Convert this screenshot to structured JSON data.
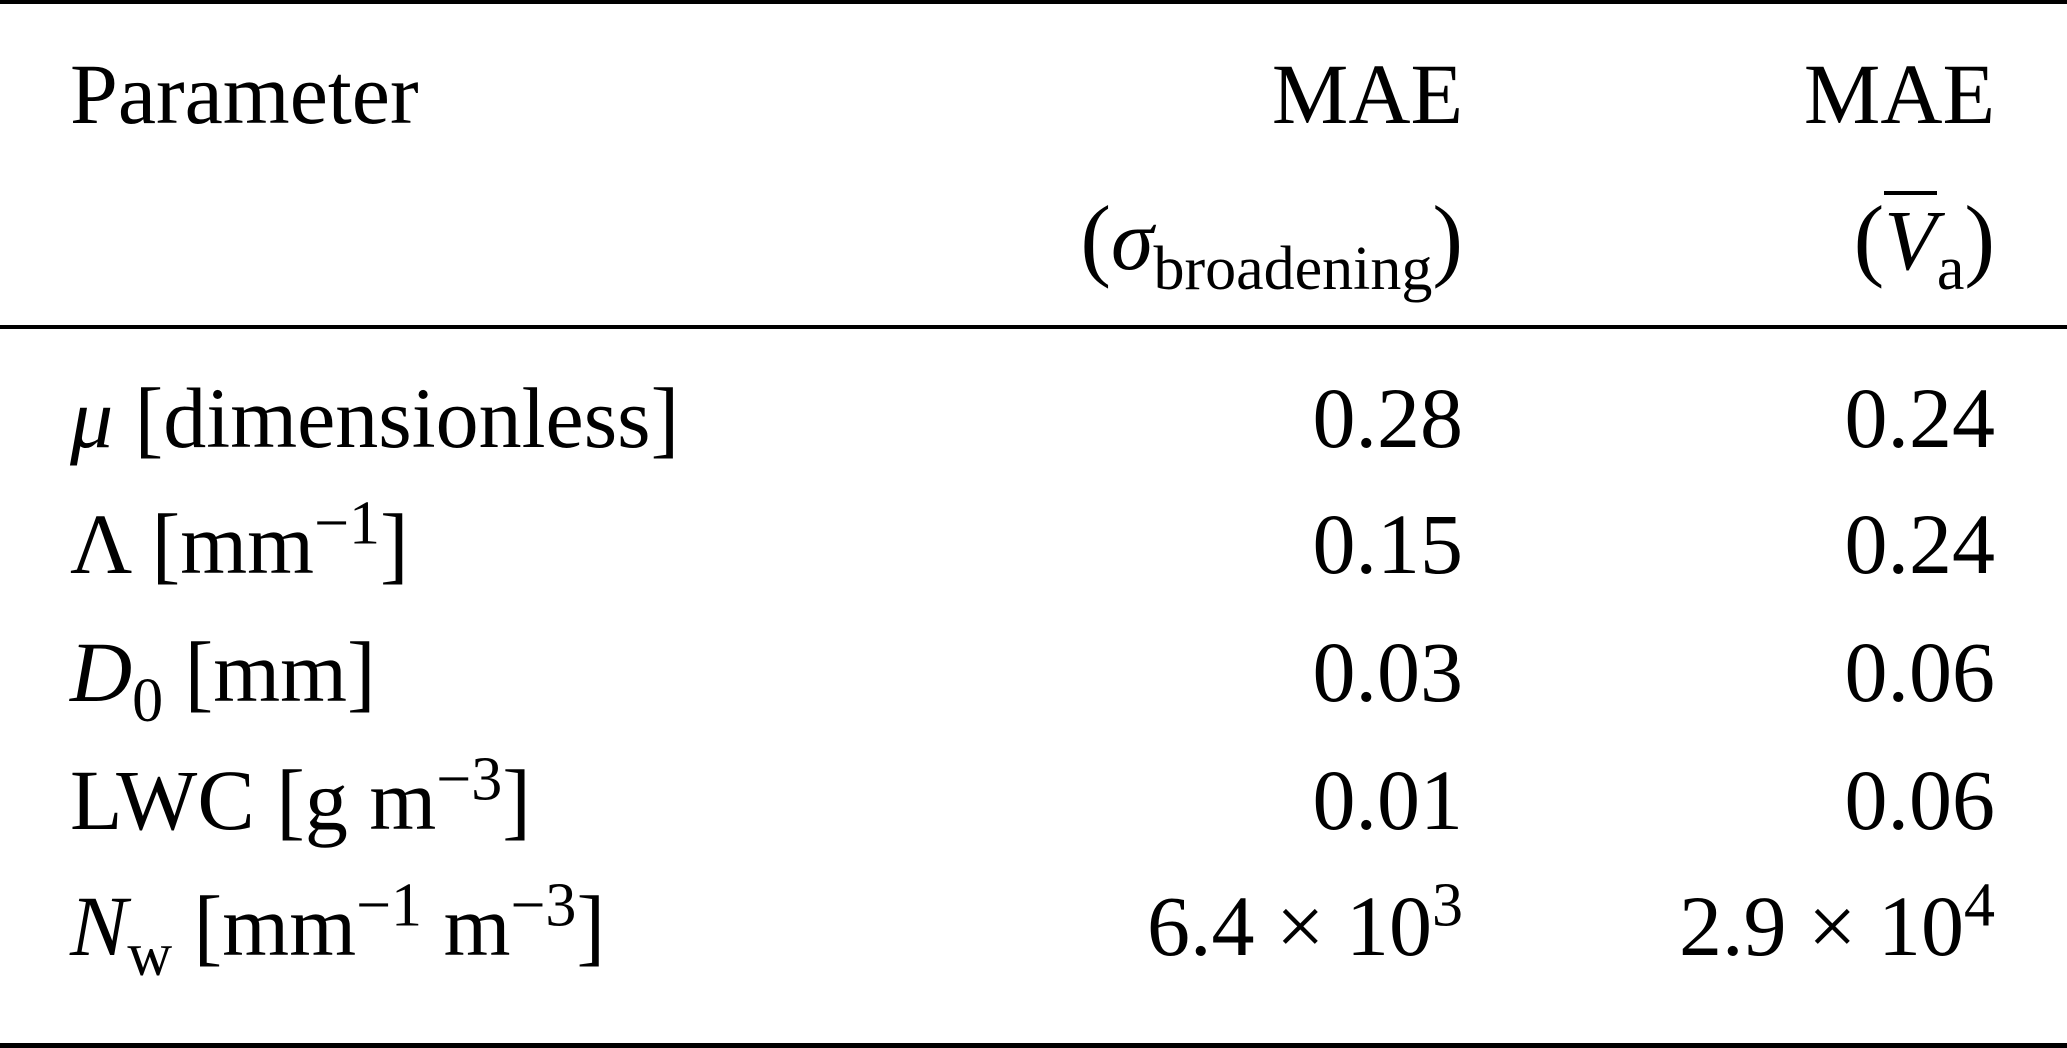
{
  "table": {
    "header": {
      "col0": "Parameter",
      "col1_line1": "MAE",
      "col1_line2": {
        "open": "(",
        "symbol": "σ",
        "subscript": "broadening",
        "close": ")"
      },
      "col2_line1": "MAE",
      "col2_line2": {
        "open": "(",
        "symbol": "V",
        "subscript": "a",
        "close": ")"
      }
    },
    "rows": [
      {
        "param": {
          "symbol": "μ",
          "unit": " [dimensionless]"
        },
        "mae_broadening": "0.28",
        "mae_va": "0.24"
      },
      {
        "param": {
          "symbol": "Λ",
          "unit_open": " [mm",
          "unit_sup": "−1",
          "unit_close": "]"
        },
        "mae_broadening": "0.15",
        "mae_va": "0.24"
      },
      {
        "param": {
          "symbol": "D",
          "subscript": "0",
          "unit": " [mm]"
        },
        "mae_broadening": "0.03",
        "mae_va": "0.06"
      },
      {
        "param": {
          "symbol": "LWC",
          "unit_open": " [g m",
          "unit_sup": "−3",
          "unit_close": "]"
        },
        "mae_broadening": "0.01",
        "mae_va": "0.06"
      },
      {
        "param": {
          "symbol": "N",
          "subscript": "w",
          "unit_open": " [mm",
          "unit_sup1": "−1",
          "unit_mid": " m",
          "unit_sup2": "−3",
          "unit_close": "]"
        },
        "mae_broadening": {
          "mantissa": "6.4 × 10",
          "exponent": "3"
        },
        "mae_va": {
          "mantissa": "2.9 × 10",
          "exponent": "4"
        }
      }
    ]
  }
}
